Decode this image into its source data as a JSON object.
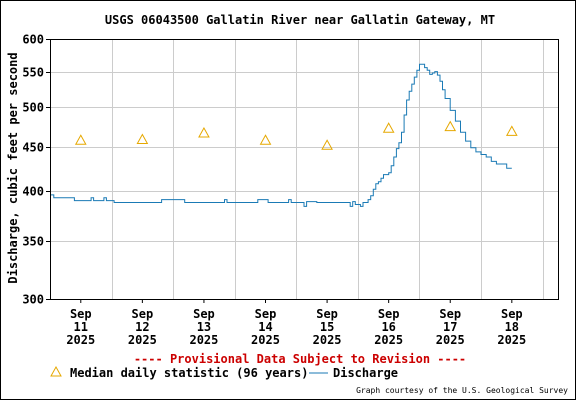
{
  "chart_data": {
    "type": "line",
    "title": "USGS 06043500 Gallatin River near Gallatin Gateway, MT",
    "ylabel": "Discharge, cubic feet per second",
    "yscale": "log",
    "ylim": [
      300,
      600
    ],
    "yticks": [
      "300",
      "350",
      "400",
      "450",
      "500",
      "550",
      "600"
    ],
    "xlim": [
      "2025-09-10T12:00",
      "2025-09-18T18:00"
    ],
    "xticks": [
      {
        "month": "Sep",
        "day": "11",
        "year": "2025",
        "t": "2025-09-11T00:00"
      },
      {
        "month": "Sep",
        "day": "12",
        "year": "2025",
        "t": "2025-09-12T00:00"
      },
      {
        "month": "Sep",
        "day": "13",
        "year": "2025",
        "t": "2025-09-13T00:00"
      },
      {
        "month": "Sep",
        "day": "14",
        "year": "2025",
        "t": "2025-09-14T00:00"
      },
      {
        "month": "Sep",
        "day": "15",
        "year": "2025",
        "t": "2025-09-15T00:00"
      },
      {
        "month": "Sep",
        "day": "16",
        "year": "2025",
        "t": "2025-09-16T00:00"
      },
      {
        "month": "Sep",
        "day": "17",
        "year": "2025",
        "t": "2025-09-17T00:00"
      },
      {
        "month": "Sep",
        "day": "18",
        "year": "2025",
        "t": "2025-09-18T00:00"
      }
    ],
    "grid": true,
    "series": [
      {
        "name": "Discharge",
        "color": "#1a7ab5",
        "points": [
          [
            "2025-09-10T12:00",
            396
          ],
          [
            "2025-09-10T13:00",
            396
          ],
          [
            "2025-09-10T13:30",
            393
          ],
          [
            "2025-09-10T18:00",
            393
          ],
          [
            "2025-09-10T21:00",
            393
          ],
          [
            "2025-09-10T21:30",
            390
          ],
          [
            "2025-09-11T00:00",
            390
          ],
          [
            "2025-09-11T03:00",
            390
          ],
          [
            "2025-09-11T04:00",
            393
          ],
          [
            "2025-09-11T05:00",
            390
          ],
          [
            "2025-09-11T08:00",
            390
          ],
          [
            "2025-09-11T09:00",
            393
          ],
          [
            "2025-09-11T10:00",
            390
          ],
          [
            "2025-09-11T12:00",
            390
          ],
          [
            "2025-09-11T13:00",
            388
          ],
          [
            "2025-09-11T20:00",
            388
          ],
          [
            "2025-09-12T00:00",
            388
          ],
          [
            "2025-09-12T07:00",
            388
          ],
          [
            "2025-09-12T07:30",
            391
          ],
          [
            "2025-09-12T16:00",
            391
          ],
          [
            "2025-09-12T16:30",
            388
          ],
          [
            "2025-09-12T20:00",
            388
          ],
          [
            "2025-09-13T06:00",
            388
          ],
          [
            "2025-09-13T07:00",
            388
          ],
          [
            "2025-09-13T08:00",
            391
          ],
          [
            "2025-09-13T09:00",
            388
          ],
          [
            "2025-09-13T20:00",
            388
          ],
          [
            "2025-09-13T21:00",
            391
          ],
          [
            "2025-09-14T00:00",
            391
          ],
          [
            "2025-09-14T01:00",
            388
          ],
          [
            "2025-09-14T08:00",
            388
          ],
          [
            "2025-09-14T09:00",
            391
          ],
          [
            "2025-09-14T10:00",
            388
          ],
          [
            "2025-09-14T14:00",
            388
          ],
          [
            "2025-09-14T15:00",
            384
          ],
          [
            "2025-09-14T16:00",
            389
          ],
          [
            "2025-09-14T20:00",
            388
          ],
          [
            "2025-09-15T00:00",
            388
          ],
          [
            "2025-09-15T06:00",
            388
          ],
          [
            "2025-09-15T08:00",
            388
          ],
          [
            "2025-09-15T09:00",
            384
          ],
          [
            "2025-09-15T10:00",
            389
          ],
          [
            "2025-09-15T11:00",
            386
          ],
          [
            "2025-09-15T12:00",
            386
          ],
          [
            "2025-09-15T13:00",
            384
          ],
          [
            "2025-09-15T14:00",
            388
          ],
          [
            "2025-09-15T15:00",
            388
          ],
          [
            "2025-09-15T16:00",
            391
          ],
          [
            "2025-09-15T17:00",
            395
          ],
          [
            "2025-09-15T18:00",
            402
          ],
          [
            "2025-09-15T19:00",
            408
          ],
          [
            "2025-09-15T20:00",
            410
          ],
          [
            "2025-09-15T21:00",
            414
          ],
          [
            "2025-09-15T22:00",
            418
          ],
          [
            "2025-09-16T00:00",
            420
          ],
          [
            "2025-09-16T01:00",
            428
          ],
          [
            "2025-09-16T02:00",
            438
          ],
          [
            "2025-09-16T03:00",
            448
          ],
          [
            "2025-09-16T04:00",
            455
          ],
          [
            "2025-09-16T05:00",
            468
          ],
          [
            "2025-09-16T06:00",
            490
          ],
          [
            "2025-09-16T07:00",
            510
          ],
          [
            "2025-09-16T08:00",
            522
          ],
          [
            "2025-09-16T09:00",
            532
          ],
          [
            "2025-09-16T10:00",
            542
          ],
          [
            "2025-09-16T11:00",
            552
          ],
          [
            "2025-09-16T12:00",
            561
          ],
          [
            "2025-09-16T13:00",
            561
          ],
          [
            "2025-09-16T14:00",
            556
          ],
          [
            "2025-09-16T15:00",
            552
          ],
          [
            "2025-09-16T16:00",
            546
          ],
          [
            "2025-09-16T17:00",
            548
          ],
          [
            "2025-09-16T18:00",
            550
          ],
          [
            "2025-09-16T19:00",
            545
          ],
          [
            "2025-09-16T20:00",
            536
          ],
          [
            "2025-09-16T21:00",
            524
          ],
          [
            "2025-09-16T22:00",
            512
          ],
          [
            "2025-09-17T00:00",
            496
          ],
          [
            "2025-09-17T02:00",
            482
          ],
          [
            "2025-09-17T04:00",
            468
          ],
          [
            "2025-09-17T06:00",
            457
          ],
          [
            "2025-09-17T08:00",
            449
          ],
          [
            "2025-09-17T10:00",
            444
          ],
          [
            "2025-09-17T12:00",
            441
          ],
          [
            "2025-09-17T14:00",
            438
          ],
          [
            "2025-09-17T16:00",
            433
          ],
          [
            "2025-09-17T18:00",
            430
          ],
          [
            "2025-09-17T20:00",
            430
          ],
          [
            "2025-09-17T22:00",
            425
          ],
          [
            "2025-09-18T00:00",
            425
          ]
        ]
      },
      {
        "name": "Median daily statistic (96 years)",
        "color": "#e6a800",
        "marker": "triangle",
        "points": [
          [
            "2025-09-11T00:00",
            458
          ],
          [
            "2025-09-12T00:00",
            459
          ],
          [
            "2025-09-13T00:00",
            467
          ],
          [
            "2025-09-14T00:00",
            458
          ],
          [
            "2025-09-15T00:00",
            452
          ],
          [
            "2025-09-16T00:00",
            473
          ],
          [
            "2025-09-17T00:00",
            475
          ],
          [
            "2025-09-18T00:00",
            469
          ]
        ]
      }
    ],
    "notice": "---- Provisional Data Subject to Revision ----",
    "legend": [
      {
        "label": "Median daily statistic (96 years)",
        "symbol": "triangle"
      },
      {
        "label": "Discharge",
        "symbol": "line"
      }
    ],
    "credit": "Graph courtesy of the U.S. Geological Survey"
  }
}
